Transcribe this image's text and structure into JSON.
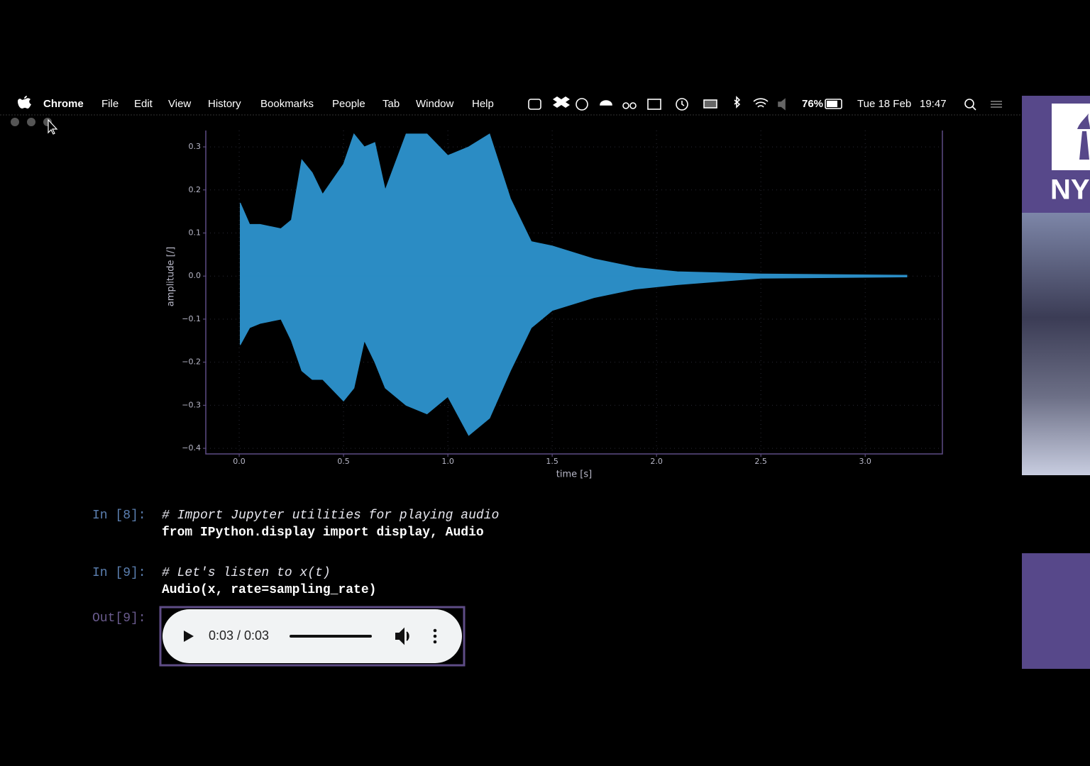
{
  "menu_bar": {
    "app": "Chrome",
    "menus": [
      "File",
      "Edit",
      "View",
      "History",
      "Bookmarks",
      "People",
      "Tab",
      "Window",
      "Help"
    ],
    "battery": "76%",
    "date": "Tue 18 Feb",
    "time": "19:47"
  },
  "chart_data": {
    "type": "envelope",
    "xlabel": "time [s]",
    "ylabel": "amplitude [/]",
    "color": "#2b8cc4",
    "x": [
      0.005,
      0.05,
      0.1,
      0.2,
      0.25,
      0.3,
      0.35,
      0.4,
      0.5,
      0.55,
      0.6,
      0.65,
      0.7,
      0.8,
      0.9,
      1.0,
      1.1,
      1.2,
      1.3,
      1.4,
      1.5,
      1.7,
      1.9,
      2.1,
      2.5,
      3.2
    ],
    "series": [
      {
        "values": [
          0.17,
          0.12,
          0.12,
          0.11,
          0.13,
          0.27,
          0.24,
          0.19,
          0.26,
          0.33,
          0.3,
          0.31,
          0.2,
          0.33,
          0.33,
          0.28,
          0.3,
          0.33,
          0.18,
          0.08,
          0.07,
          0.04,
          0.02,
          0.01,
          0.005,
          0.002
        ]
      },
      {
        "values": [
          -0.16,
          -0.12,
          -0.11,
          -0.1,
          -0.15,
          -0.22,
          -0.24,
          -0.24,
          -0.29,
          -0.26,
          -0.15,
          -0.2,
          -0.26,
          -0.3,
          -0.32,
          -0.28,
          -0.37,
          -0.33,
          -0.22,
          -0.12,
          -0.08,
          -0.05,
          -0.03,
          -0.02,
          -0.005,
          -0.002
        ]
      }
    ],
    "xlim": [
      -0.16,
      3.37
    ],
    "ylim": [
      -0.413,
      0.338
    ],
    "xticks": [
      {
        "value": 0,
        "label": "0.0"
      },
      {
        "value": 0.5,
        "label": "0.5"
      },
      {
        "value": 1,
        "label": "1.0"
      },
      {
        "value": 1.5,
        "label": "1.5"
      },
      {
        "value": 2,
        "label": "2.0"
      },
      {
        "value": 2.5,
        "label": "2.5"
      },
      {
        "value": 3,
        "label": "3.0"
      }
    ],
    "yticks": [
      {
        "value": -0.4,
        "label": "−0.4"
      },
      {
        "value": -0.3,
        "label": "−0.3"
      },
      {
        "value": -0.2,
        "label": "−0.2"
      },
      {
        "value": -0.1,
        "label": "−0.1"
      },
      {
        "value": 0,
        "label": "0.0"
      },
      0.1,
      0.2,
      0.3
    ],
    "grid": true
  },
  "cells": [
    {
      "prompt": "In [8]:",
      "lines": [
        "# Import Jupyter utilities for playing audio",
        "from IPython.display import display, Audio"
      ]
    },
    {
      "prompt": "In [9]:",
      "lines": [
        "# Let's listen to x(t)",
        "Audio(x, rate=sampling_rate)"
      ]
    }
  ],
  "output": {
    "prompt": "Out[9]:",
    "audio_time": "0:03 / 0:03"
  },
  "sidebar": {
    "logo": "NY"
  }
}
